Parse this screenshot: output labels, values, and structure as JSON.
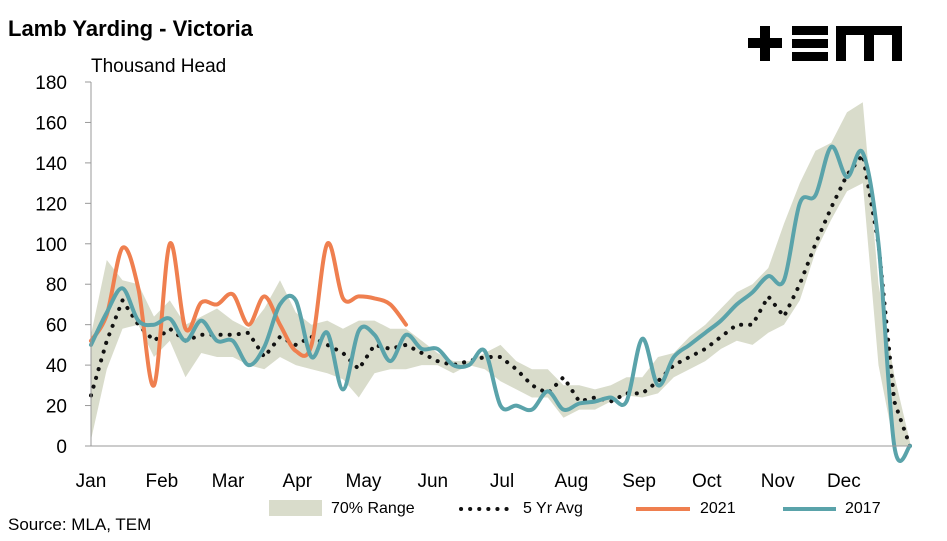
{
  "logo_text": "+EM",
  "source": "Source: MLA, TEM",
  "colors": {
    "range": "#d9dccb",
    "avg": "#111111",
    "s2021": "#ef7f4f",
    "s2017": "#5aa3aa",
    "axis": "#999999"
  },
  "chart_data": {
    "type": "line",
    "title": "Lamb Yarding - Victoria",
    "ylabel": "Thousand Head",
    "xlabel": "",
    "xlim": [
      1,
      53
    ],
    "ylim": [
      0,
      180
    ],
    "yticks": [
      0,
      20,
      40,
      60,
      80,
      100,
      120,
      140,
      160,
      180
    ],
    "months": [
      {
        "label": "Jan",
        "week": 1
      },
      {
        "label": "Feb",
        "week": 5.5
      },
      {
        "label": "Mar",
        "week": 9.7
      },
      {
        "label": "Apr",
        "week": 14.1
      },
      {
        "label": "May",
        "week": 18.3
      },
      {
        "label": "Jun",
        "week": 22.7
      },
      {
        "label": "Jul",
        "week": 27.1
      },
      {
        "label": "Aug",
        "week": 31.5
      },
      {
        "label": "Sep",
        "week": 35.8
      },
      {
        "label": "Oct",
        "week": 40.1
      },
      {
        "label": "Nov",
        "week": 44.6
      },
      {
        "label": "Dec",
        "week": 48.8
      }
    ],
    "legend": [
      "70% Range",
      "5 Yr Avg",
      "2021",
      "2017"
    ],
    "range_70": {
      "weeks": [
        1,
        2,
        3,
        4,
        5,
        6,
        7,
        8,
        9,
        10,
        11,
        12,
        13,
        14,
        15,
        16,
        17,
        18,
        19,
        20,
        21,
        22,
        23,
        24,
        25,
        26,
        27,
        28,
        29,
        30,
        31,
        32,
        33,
        34,
        35,
        36,
        37,
        38,
        39,
        40,
        41,
        42,
        43,
        44,
        45,
        46,
        47,
        48,
        49,
        50,
        51,
        52,
        53
      ],
      "low": [
        3,
        38,
        58,
        60,
        44,
        52,
        34,
        46,
        44,
        44,
        40,
        38,
        44,
        40,
        38,
        36,
        33,
        24,
        36,
        38,
        38,
        40,
        40,
        36,
        40,
        38,
        32,
        28,
        24,
        24,
        14,
        18,
        18,
        22,
        25,
        24,
        26,
        34,
        38,
        42,
        48,
        52,
        50,
        56,
        60,
        72,
        96,
        112,
        126,
        130,
        40,
        0,
        0
      ],
      "high": [
        55,
        92,
        82,
        80,
        64,
        72,
        60,
        64,
        68,
        62,
        58,
        68,
        82,
        66,
        60,
        62,
        58,
        62,
        62,
        58,
        58,
        52,
        46,
        42,
        42,
        46,
        50,
        42,
        38,
        38,
        30,
        30,
        28,
        30,
        34,
        34,
        44,
        46,
        54,
        60,
        68,
        76,
        80,
        88,
        110,
        130,
        146,
        150,
        165,
        170,
        80,
        35,
        2
      ]
    },
    "series": [
      {
        "name": "5 Yr Avg",
        "x": [
          1,
          2,
          3,
          4,
          5,
          6,
          7,
          8,
          9,
          10,
          11,
          12,
          13,
          14,
          15,
          16,
          17,
          18,
          19,
          20,
          21,
          22,
          23,
          24,
          25,
          26,
          27,
          28,
          29,
          30,
          31,
          32,
          33,
          34,
          35,
          36,
          37,
          38,
          39,
          40,
          41,
          42,
          43,
          44,
          45,
          46,
          47,
          48,
          49,
          50,
          51,
          52,
          53
        ],
        "y": [
          25,
          52,
          72,
          60,
          52,
          58,
          52,
          55,
          55,
          55,
          56,
          44,
          54,
          50,
          54,
          50,
          46,
          38,
          50,
          48,
          50,
          46,
          42,
          40,
          42,
          44,
          44,
          38,
          30,
          26,
          34,
          22,
          24,
          22,
          26,
          26,
          32,
          40,
          44,
          48,
          54,
          60,
          60,
          74,
          64,
          80,
          100,
          118,
          134,
          144,
          100,
          22,
          0
        ]
      },
      {
        "name": "2021",
        "x": [
          1,
          2,
          3,
          4,
          5,
          6,
          7,
          8,
          9,
          10,
          11,
          12,
          13,
          14,
          15,
          16,
          17,
          18,
          19,
          20,
          21,
          22
        ],
        "y": [
          52,
          65,
          98,
          78,
          30,
          100,
          58,
          71,
          70,
          75,
          60,
          74,
          60,
          47,
          50,
          100,
          73,
          74,
          73,
          70,
          60,
          null
        ]
      },
      {
        "name": "2017",
        "x": [
          1,
          2,
          3,
          4,
          5,
          6,
          7,
          8,
          9,
          10,
          11,
          12,
          13,
          14,
          15,
          16,
          17,
          18,
          19,
          20,
          21,
          22,
          23,
          24,
          25,
          26,
          27,
          28,
          29,
          30,
          31,
          32,
          33,
          34,
          35,
          36,
          37,
          38,
          39,
          40,
          41,
          42,
          43,
          44,
          45,
          46,
          47,
          48,
          49,
          50,
          51,
          52,
          53
        ],
        "y": [
          50,
          66,
          78,
          62,
          60,
          63,
          52,
          62,
          52,
          52,
          40,
          49,
          70,
          72,
          44,
          56,
          28,
          57,
          55,
          42,
          55,
          48,
          48,
          40,
          40,
          47,
          20,
          20,
          18,
          27,
          18,
          21,
          22,
          24,
          22,
          53,
          30,
          44,
          50,
          56,
          62,
          70,
          76,
          84,
          82,
          120,
          124,
          148,
          133,
          145,
          100,
          0,
          0
        ]
      }
    ]
  }
}
